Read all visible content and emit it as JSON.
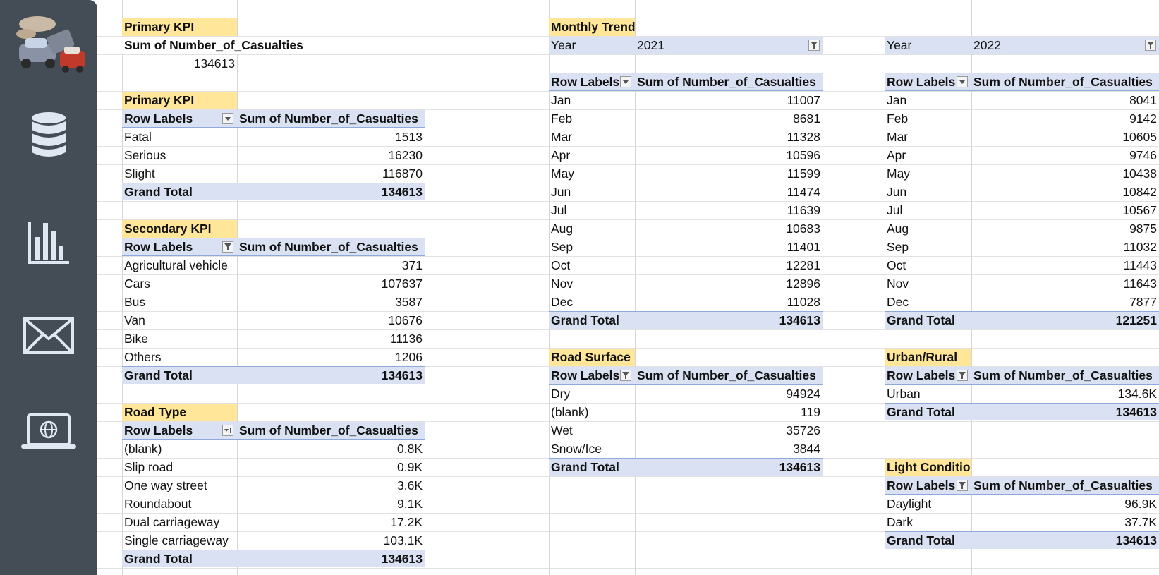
{
  "sidebar": {
    "items": [
      {
        "icon": "car-crash-logo-icon"
      },
      {
        "icon": "database-icon"
      },
      {
        "icon": "bar-chart-icon"
      },
      {
        "icon": "mail-icon"
      },
      {
        "icon": "laptop-globe-icon"
      }
    ],
    "bg_color": "#444c55"
  },
  "colors": {
    "title_bg": "#ffe699",
    "header_bg": "#d9e1f2",
    "border": "#8ea9db"
  },
  "primary_kpi_1": {
    "title": "Primary KPI",
    "header": "Sum of Number_of_Casualties",
    "value": "134613"
  },
  "primary_kpi_2": {
    "title": "Primary KPI",
    "col1": "Row Labels",
    "col2": "Sum of Number_of_Casualties",
    "rows": [
      {
        "label": "Fatal",
        "value": "1513"
      },
      {
        "label": "Serious",
        "value": "16230"
      },
      {
        "label": "Slight",
        "value": "116870"
      }
    ],
    "total_label": "Grand Total",
    "total_value": "134613"
  },
  "secondary_kpi": {
    "title": "Secondary KPI",
    "col1": "Row Labels",
    "col2": "Sum of Number_of_Casualties",
    "rows": [
      {
        "label": "Agricultural vehicle",
        "value": "371"
      },
      {
        "label": "Cars",
        "value": "107637"
      },
      {
        "label": "Bus",
        "value": "3587"
      },
      {
        "label": "Van",
        "value": "10676"
      },
      {
        "label": "Bike",
        "value": "11136"
      },
      {
        "label": "Others",
        "value": "1206"
      }
    ],
    "total_label": "Grand Total",
    "total_value": "134613"
  },
  "road_type": {
    "title": "Road Type",
    "col1": "Row Labels",
    "col2": "Sum of Number_of_Casualties",
    "rows": [
      {
        "label": "(blank)",
        "value": "0.8K"
      },
      {
        "label": "Slip road",
        "value": "0.9K"
      },
      {
        "label": "One way street",
        "value": "3.6K"
      },
      {
        "label": "Roundabout",
        "value": "9.1K"
      },
      {
        "label": "Dual carriageway",
        "value": "17.2K"
      },
      {
        "label": "Single carriageway",
        "value": "103.1K"
      }
    ],
    "total_label": "Grand Total",
    "total_value": "134613"
  },
  "monthly_trend": {
    "title": "Monthly Trend",
    "filter_label": "Year",
    "filter_value": "2021",
    "col1": "Row Labels",
    "col2": "Sum of Number_of_Casualties",
    "rows": [
      {
        "label": "Jan",
        "value": "11007"
      },
      {
        "label": "Feb",
        "value": "8681"
      },
      {
        "label": "Mar",
        "value": "11328"
      },
      {
        "label": "Apr",
        "value": "10596"
      },
      {
        "label": "May",
        "value": "11599"
      },
      {
        "label": "Jun",
        "value": "11474"
      },
      {
        "label": "Jul",
        "value": "11639"
      },
      {
        "label": "Aug",
        "value": "10683"
      },
      {
        "label": "Sep",
        "value": "11401"
      },
      {
        "label": "Oct",
        "value": "12281"
      },
      {
        "label": "Nov",
        "value": "12896"
      },
      {
        "label": "Dec",
        "value": "11028"
      }
    ],
    "total_label": "Grand Total",
    "total_value": "134613"
  },
  "trend_2022": {
    "filter_label": "Year",
    "filter_value": "2022",
    "col1": "Row Labels",
    "col2": "Sum of Number_of_Casualties",
    "rows": [
      {
        "label": "Jan",
        "value": "8041"
      },
      {
        "label": "Feb",
        "value": "9142"
      },
      {
        "label": "Mar",
        "value": "10605"
      },
      {
        "label": "Apr",
        "value": "9746"
      },
      {
        "label": "May",
        "value": "10438"
      },
      {
        "label": "Jun",
        "value": "10842"
      },
      {
        "label": "Jul",
        "value": "10567"
      },
      {
        "label": "Aug",
        "value": "9875"
      },
      {
        "label": "Sep",
        "value": "11032"
      },
      {
        "label": "Oct",
        "value": "11443"
      },
      {
        "label": "Nov",
        "value": "11643"
      },
      {
        "label": "Dec",
        "value": "7877"
      }
    ],
    "total_label": "Grand Total",
    "total_value": "121251"
  },
  "road_surface": {
    "title": "Road Surface",
    "col1": "Row Labels",
    "col2": "Sum of Number_of_Casualties",
    "rows": [
      {
        "label": "Dry",
        "value": "94924"
      },
      {
        "label": "(blank)",
        "value": "119"
      },
      {
        "label": "Wet",
        "value": "35726"
      },
      {
        "label": "Snow/Ice",
        "value": "3844"
      }
    ],
    "total_label": "Grand Total",
    "total_value": "134613"
  },
  "urban_rural": {
    "title": "Urban/Rural",
    "col1": "Row Labels",
    "col2": "Sum of Number_of_Casualties",
    "rows": [
      {
        "label": "Urban",
        "value": "134.6K"
      }
    ],
    "total_label": "Grand Total",
    "total_value": "134613"
  },
  "light_condition": {
    "title": "Light Condition",
    "col1": "Row Labels",
    "col2": "Sum of Number_of_Casualties",
    "rows": [
      {
        "label": "Daylight",
        "value": "96.9K"
      },
      {
        "label": "Dark",
        "value": "37.7K"
      }
    ],
    "total_label": "Grand Total",
    "total_value": "134613"
  }
}
